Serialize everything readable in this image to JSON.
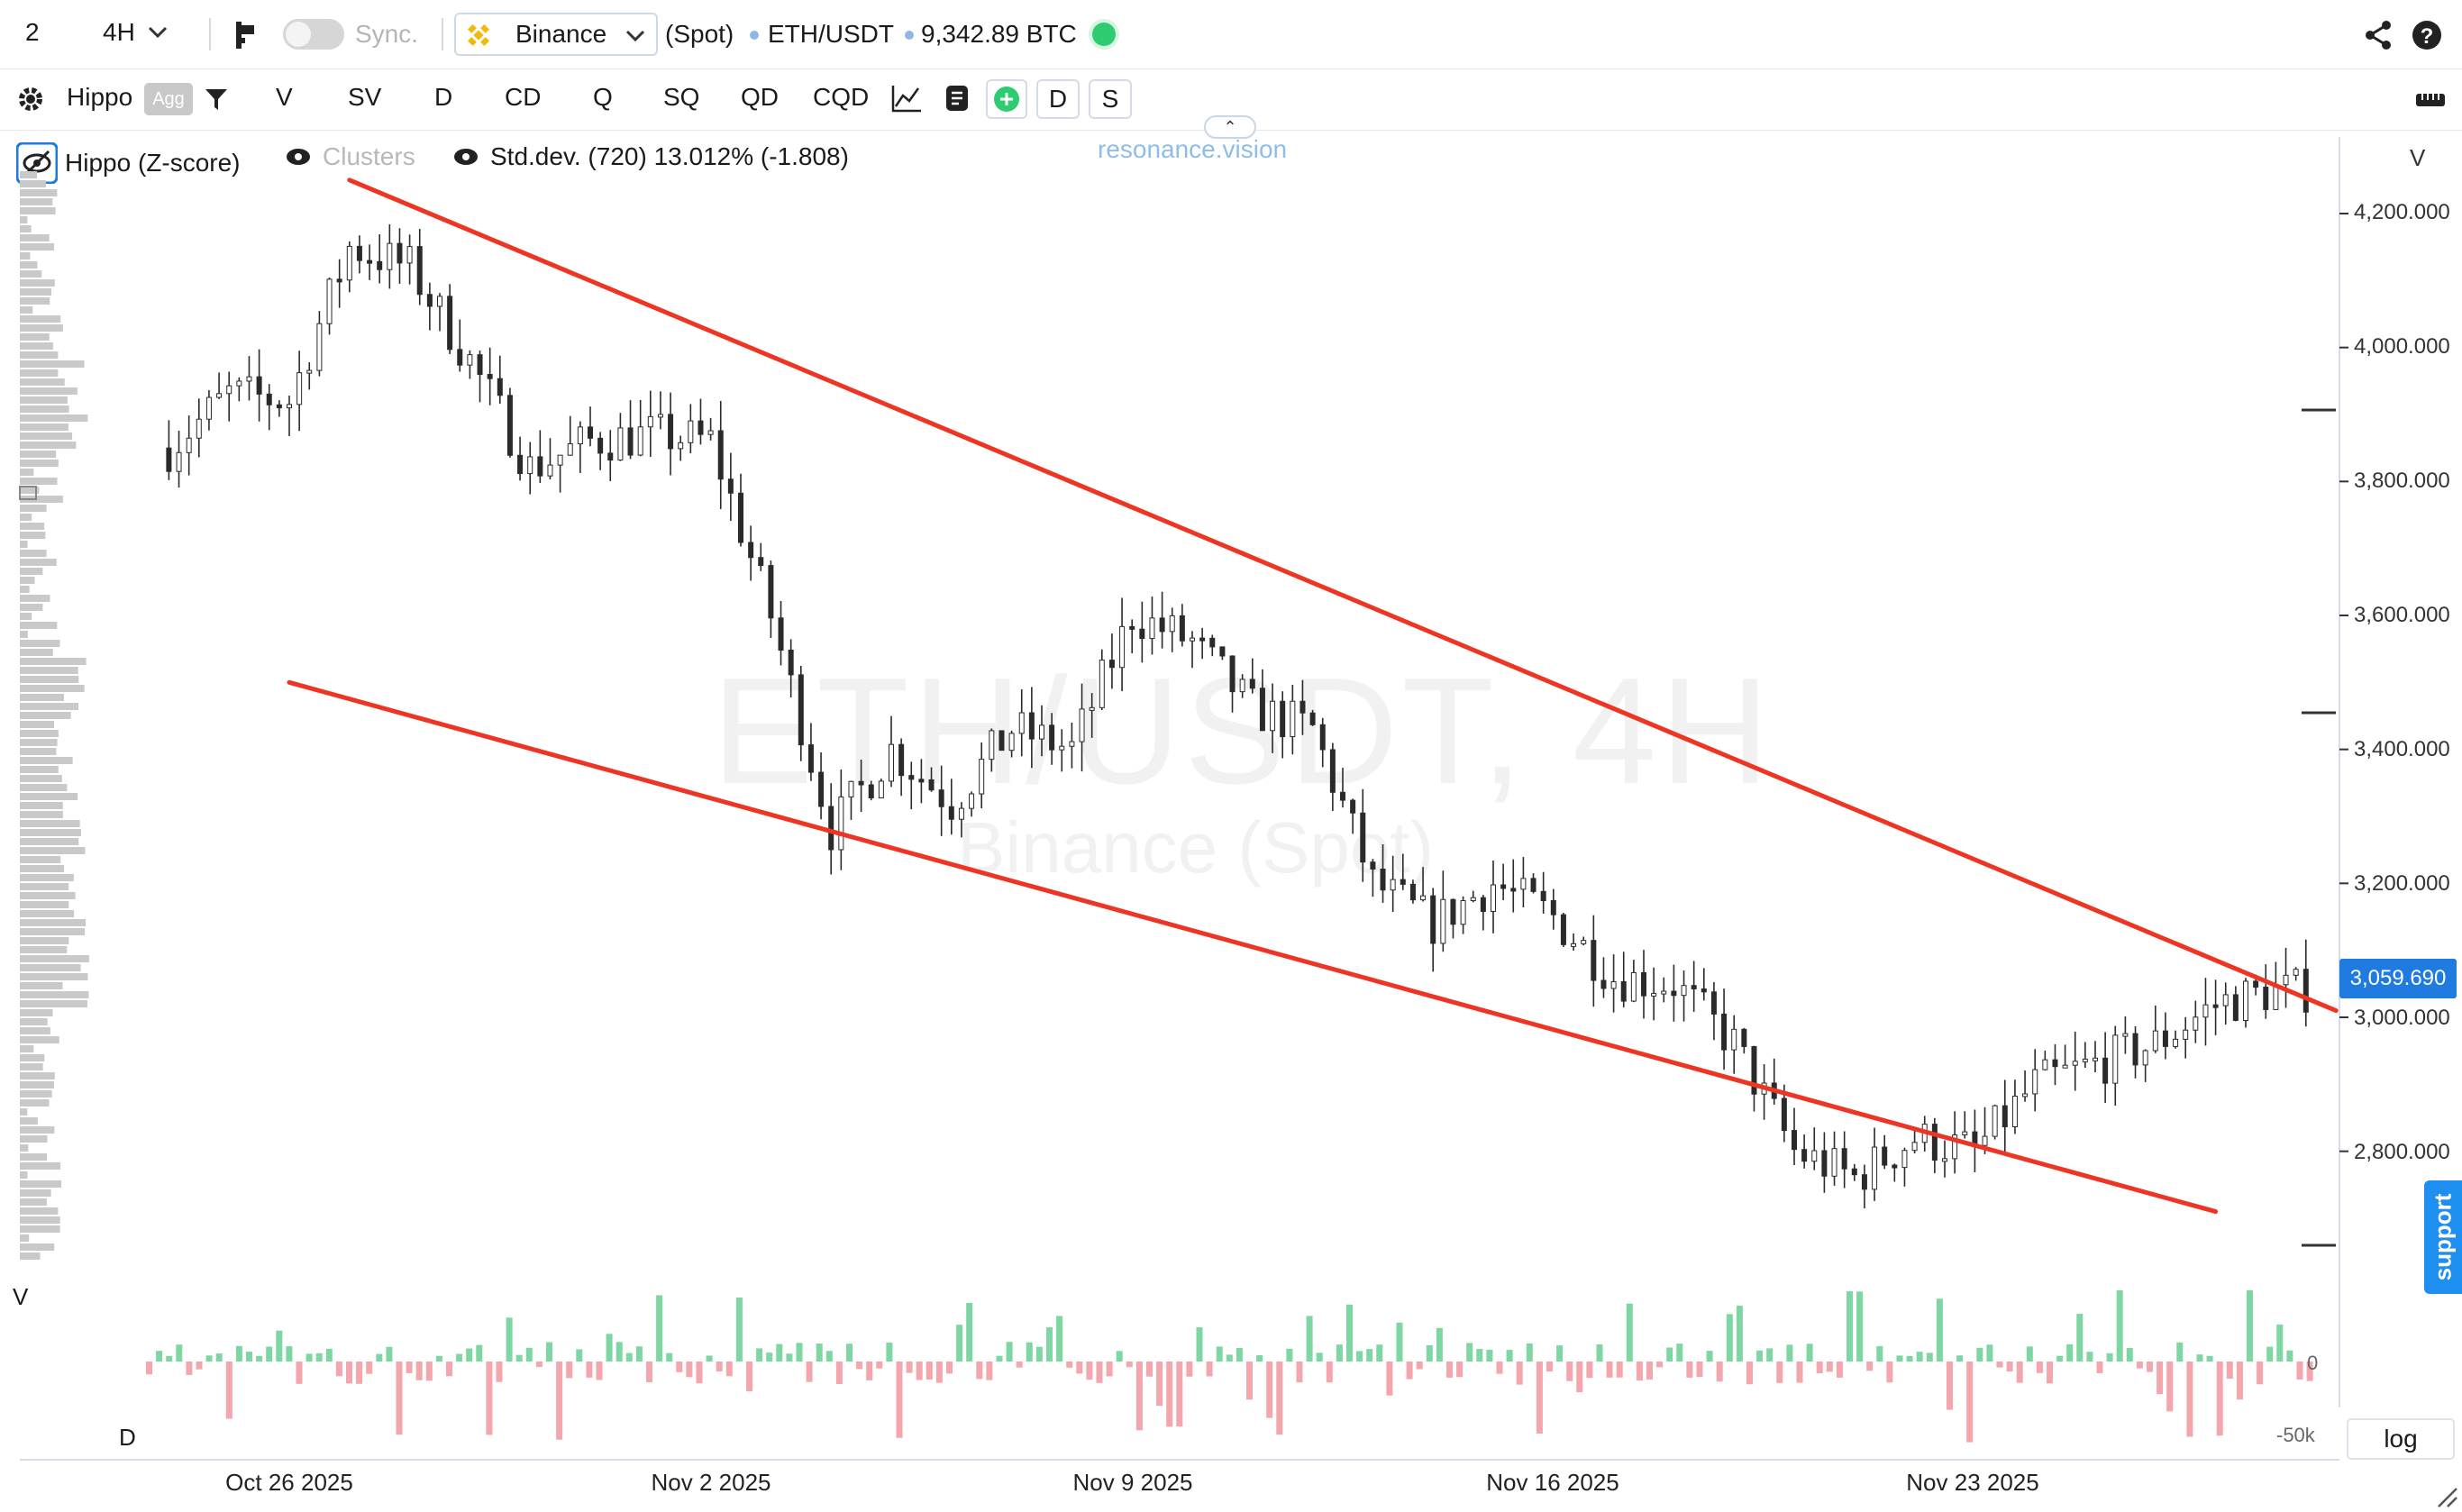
{
  "toolbar": {
    "layout_count": "2",
    "timeframe": "4H",
    "sync_label": "Sync.",
    "exchange": "Binance",
    "market": "(Spot)",
    "symbol": "ETH/USDT",
    "btc_price": "9,342.89 BTC"
  },
  "indicators_bar": {
    "name": "Hippo",
    "agg_label": "Agg",
    "buttons": [
      "V",
      "SV",
      "D",
      "CD",
      "Q",
      "SQ",
      "QD",
      "CQD"
    ],
    "chip_d": "D",
    "chip_s": "S"
  },
  "legend": {
    "hippo": "Hippo (Z-score)",
    "clusters": "Clusters",
    "stddev": "Std.dev. (720) 13.012% (-1.808)"
  },
  "watermark": {
    "symbol": "ETH/USDT, 4H",
    "exchange": "Binance (Spot)"
  },
  "brand": "resonance.vision",
  "side_labels": {
    "volume_profile": "V",
    "delta_pane": "D",
    "price_axis_label": "V"
  },
  "price_tag": "3,059.690",
  "log_button": "log",
  "support_label": "support",
  "colors": {
    "up": "#7ed6a3",
    "down": "#f3a6ac",
    "trendline": "#ee3524",
    "accent": "#1f7be0",
    "candle": "#2a2a2a"
  },
  "chart_data": {
    "type": "candlestick",
    "y_axis": {
      "ticks": [
        "4,200.000",
        "4,000.000",
        "3,800.000",
        "3,600.000",
        "3,400.000",
        "3,200.000",
        "3,000.000",
        "2,800.000"
      ],
      "ylim": [
        2640,
        4280
      ]
    },
    "x_axis": {
      "ticks": [
        "Oct 26 2025",
        "Nov 2 2025",
        "Nov 9 2025",
        "Nov 16 2025",
        "Nov 23 2025"
      ]
    },
    "price_path": [
      [
        "Oct 24 2025",
        3850
      ],
      [
        "Oct 25 2025",
        3930
      ],
      [
        "Oct 26 2025",
        3920
      ],
      [
        "Oct 27 2025",
        4150
      ],
      [
        "Oct 28 2025",
        4120
      ],
      [
        "Oct 29 2025",
        3980
      ],
      [
        "Oct 30 2025",
        3820
      ],
      [
        "Oct 31 2025",
        3860
      ],
      [
        "Nov 1 2025",
        3870
      ],
      [
        "Nov 2 2025",
        3860
      ],
      [
        "Nov 3 2025",
        3600
      ],
      [
        "Nov 4 2025",
        3280
      ],
      [
        "Nov 5 2025",
        3400
      ],
      [
        "Nov 6 2025",
        3320
      ],
      [
        "Nov 7 2025",
        3430
      ],
      [
        "Nov 8 2025",
        3400
      ],
      [
        "Nov 9 2025",
        3600
      ],
      [
        "Nov 10 2025",
        3560
      ],
      [
        "Nov 11 2025",
        3460
      ],
      [
        "Nov 12 2025",
        3430
      ],
      [
        "Nov 13 2025",
        3200
      ],
      [
        "Nov 14 2025",
        3140
      ],
      [
        "Nov 15 2025",
        3200
      ],
      [
        "Nov 16 2025",
        3150
      ],
      [
        "Nov 17 2025",
        3060
      ],
      [
        "Nov 18 2025",
        3050
      ],
      [
        "Nov 19 2025",
        2960
      ],
      [
        "Nov 20 2025",
        2800
      ],
      [
        "Nov 21 2025",
        2760
      ],
      [
        "Nov 22 2025",
        2820
      ],
      [
        "Nov 23 2025",
        2800
      ],
      [
        "Nov 24 2025",
        2900
      ],
      [
        "Nov 25 2025",
        2930
      ],
      [
        "Nov 26 2025",
        2960
      ],
      [
        "Nov 27 2025",
        3020
      ],
      [
        "Nov 28 2025",
        3040
      ]
    ],
    "trendlines": [
      {
        "from": [
          "Oct 27 2025",
          4250
        ],
        "to": [
          "Nov 29 2025",
          3010
        ]
      },
      {
        "from": [
          "Oct 26 2025",
          3500
        ],
        "to": [
          "Nov 27 2025",
          2710
        ]
      }
    ],
    "last_price": 3059.69,
    "delta_pane": {
      "ticks": [
        "0",
        "-50k"
      ]
    },
    "scale": "log"
  }
}
